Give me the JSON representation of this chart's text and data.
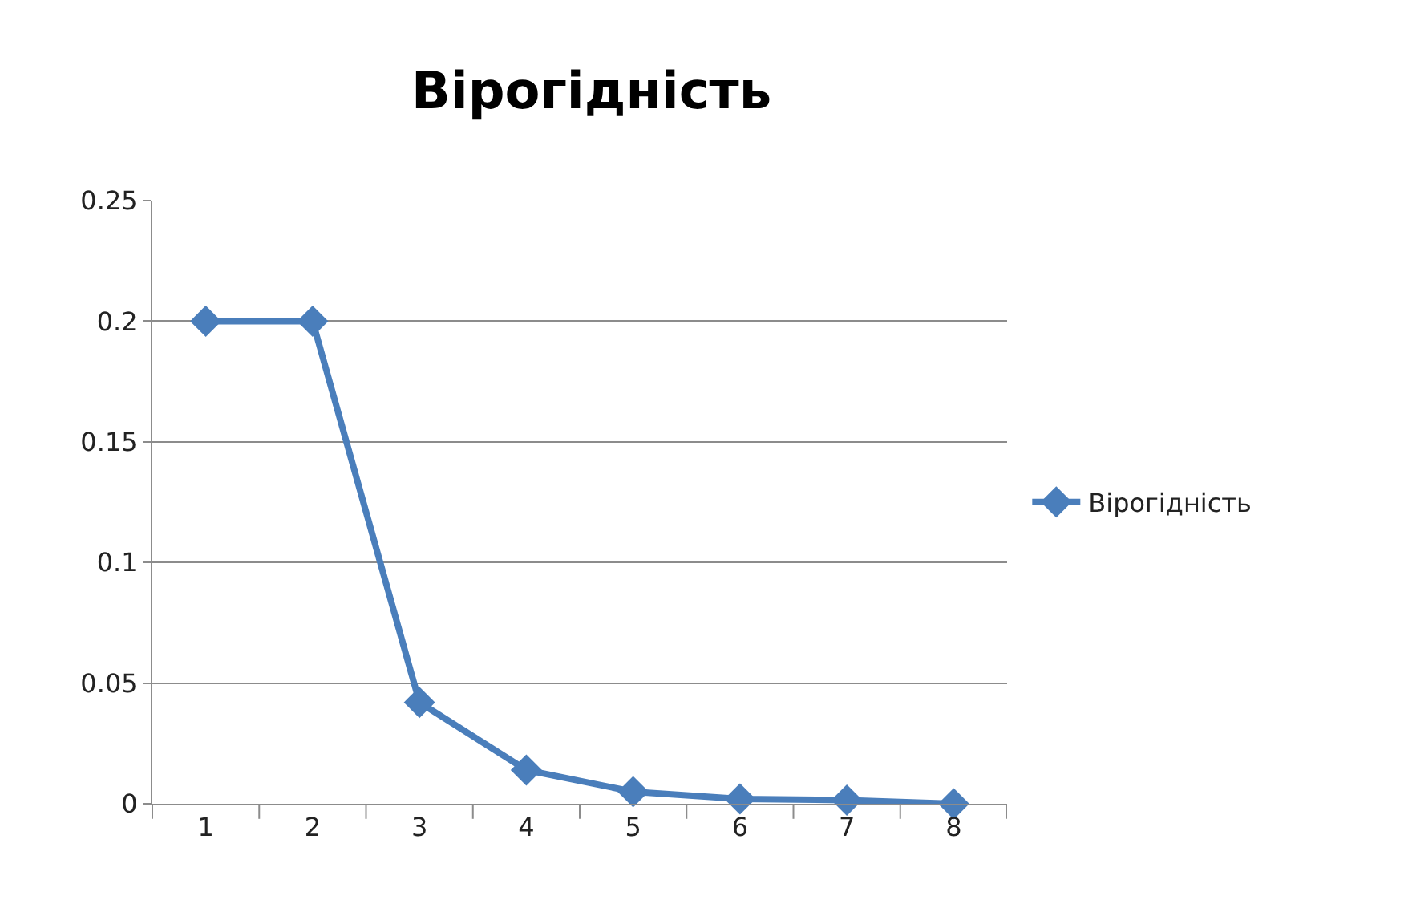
{
  "chart_data": {
    "type": "line",
    "title": "Вірогідність",
    "categories": [
      "1",
      "2",
      "3",
      "4",
      "5",
      "6",
      "7",
      "8"
    ],
    "series": [
      {
        "name": "Вірогідність",
        "color": "#4a7ebb",
        "values": [
          0.2,
          0.2,
          0.042,
          0.014,
          0.005,
          0.002,
          0.0015,
          0.0
        ]
      }
    ],
    "ylim": [
      0,
      0.25
    ],
    "yticks": [
      0,
      0.05,
      0.1,
      0.15,
      0.2,
      0.25
    ],
    "grid": "y",
    "legend": "right",
    "marker": "diamond",
    "line_style": "solid"
  }
}
